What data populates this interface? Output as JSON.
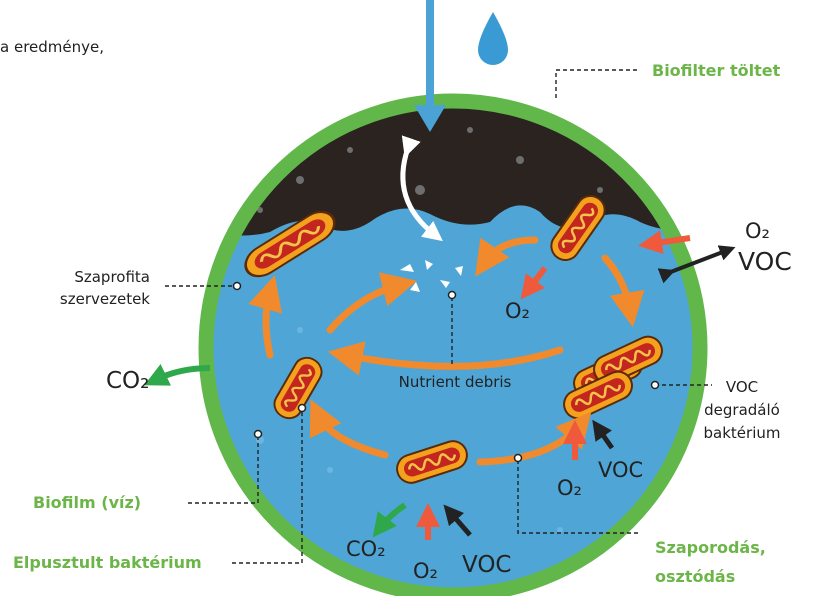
{
  "top_text": "a eredménye,",
  "labels": {
    "biofilter": "Biofilter töltet",
    "saprophyte": [
      "Szaprofita",
      "szervezetek"
    ],
    "nutrient": "Nutrient debris",
    "voc_bacteria": [
      "VOC",
      "degradáló",
      "baktérium"
    ],
    "biofilm": "Biofilm (víz)",
    "dead": "Elpusztult baktérium",
    "reproduction": [
      "Szaporodás,",
      "osztódás"
    ]
  },
  "chemicals": [
    "O₂",
    "VOC",
    "O₂",
    "CO₂",
    "O₂",
    "VOC",
    "CO₂",
    "O₂",
    "VOC"
  ]
}
